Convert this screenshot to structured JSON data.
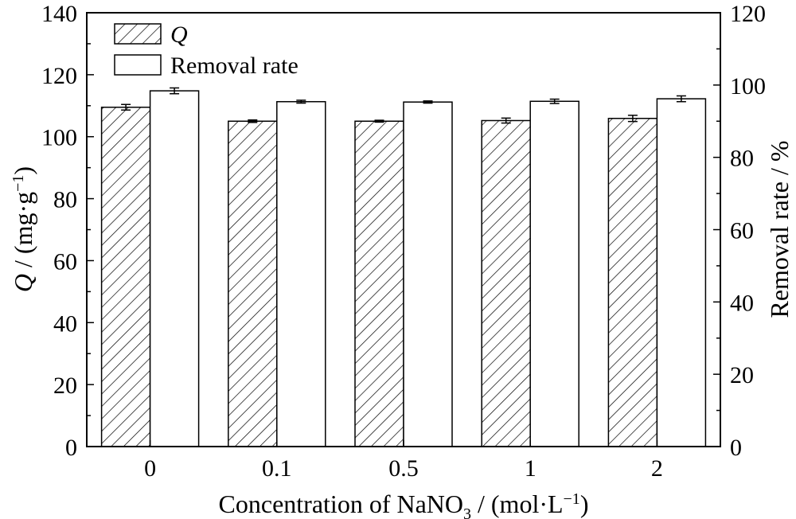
{
  "chart_data": {
    "type": "bar",
    "categories": [
      "0",
      "0.1",
      "0.5",
      "1",
      "2"
    ],
    "xlabel": "Concentration of NaNO₃ / (mol·L⁻¹)",
    "xlabel_parts": {
      "main": "Concentration of NaNO",
      "sub": "3",
      "rest": " / (mol·L",
      "sup": "−1",
      "end": ")"
    },
    "ylabel_left": "Q / (mg·g⁻¹)",
    "ylabel_left_parts": {
      "q": "Q",
      "mid": " / (mg·g",
      "sup": "−1",
      "end": ")"
    },
    "ylabel_right": "Removal rate / %",
    "ylim_left": [
      0,
      140
    ],
    "yticks_left": [
      0,
      20,
      40,
      60,
      80,
      100,
      120,
      140
    ],
    "ylim_right": [
      0,
      120
    ],
    "yticks_right": [
      0,
      20,
      40,
      60,
      80,
      100,
      120
    ],
    "legend_position": "top-left",
    "series": [
      {
        "name": "Q",
        "axis": "left",
        "pattern": "hatched",
        "values": [
          109.5,
          105.0,
          105.0,
          105.2,
          105.9
        ],
        "errors": [
          0.9,
          0.4,
          0.3,
          0.8,
          1.0
        ]
      },
      {
        "name": "Removal rate",
        "axis": "right",
        "pattern": "open",
        "values": [
          98.4,
          95.4,
          95.3,
          95.5,
          96.2
        ],
        "errors": [
          0.8,
          0.4,
          0.3,
          0.6,
          0.8
        ]
      }
    ],
    "colors": {
      "stroke": "#000000",
      "fill": "#ffffff"
    }
  }
}
